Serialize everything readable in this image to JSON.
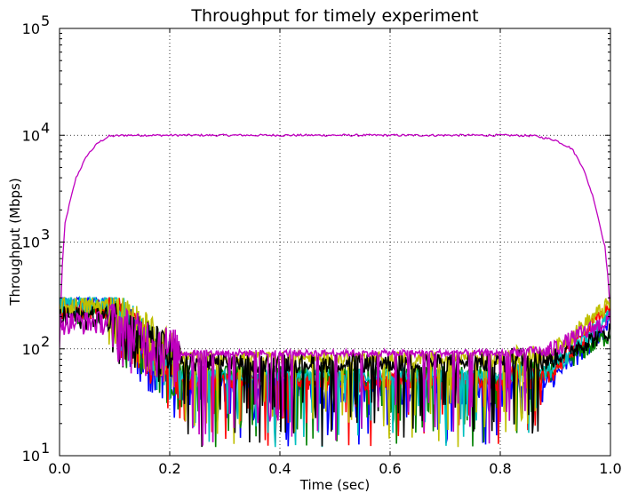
{
  "chart_data": {
    "type": "line",
    "title": "Throughput for timely experiment",
    "xlabel": "Time (sec)",
    "ylabel": "Throughput (Mbps)",
    "xlim": [
      0.0,
      1.0
    ],
    "ylim": [
      10,
      100000
    ],
    "yscale": "log",
    "grid": true,
    "x_ticks": [
      0.0,
      0.2,
      0.4,
      0.6,
      0.8,
      1.0
    ],
    "x_tick_labels": [
      "0.0",
      "0.2",
      "0.4",
      "0.6",
      "0.8",
      "1.0"
    ],
    "y_ticks": [
      10,
      100,
      1000,
      10000,
      100000
    ],
    "y_tick_labels": [
      {
        "base": "10",
        "exp": "1"
      },
      {
        "base": "10",
        "exp": "2"
      },
      {
        "base": "10",
        "exp": "3"
      },
      {
        "base": "10",
        "exp": "4"
      },
      {
        "base": "10",
        "exp": "5"
      }
    ],
    "series": [
      {
        "color": "#bf00bf",
        "kind": "elephant",
        "x": [
          0.0,
          0.005,
          0.01,
          0.02,
          0.03,
          0.05,
          0.07,
          0.09,
          0.12,
          0.2,
          0.4,
          0.6,
          0.8,
          0.86,
          0.9,
          0.93,
          0.95,
          0.97,
          0.98,
          0.99,
          0.995,
          1.0
        ],
        "y": [
          100,
          600,
          1500,
          2500,
          4000,
          6500,
          8500,
          9800,
          10000,
          10000,
          10000,
          10000,
          10000,
          9900,
          9000,
          7500,
          5000,
          2500,
          1500,
          900,
          500,
          200
        ]
      },
      {
        "color": "#0000ff",
        "kind": "mouse",
        "start": 260,
        "low": 30,
        "high": 60,
        "end": 170
      },
      {
        "color": "#008000",
        "kind": "mouse",
        "start": 230,
        "low": 45,
        "high": 70,
        "end": 140
      },
      {
        "color": "#ff0000",
        "kind": "mouse",
        "start": 240,
        "low": 40,
        "high": 60,
        "end": 260
      },
      {
        "color": "#00bfbf",
        "kind": "mouse",
        "start": 270,
        "low": 50,
        "high": 65,
        "end": 200
      },
      {
        "color": "#bfbf00",
        "kind": "mouse",
        "start": 250,
        "low": 70,
        "high": 95,
        "end": 270
      },
      {
        "color": "#000000",
        "kind": "mouse",
        "start": 200,
        "low": 60,
        "high": 90,
        "end": 150
      },
      {
        "color": "#bf00bf",
        "kind": "mouse",
        "start": 180,
        "low": 85,
        "high": 98,
        "end": 190
      }
    ]
  }
}
